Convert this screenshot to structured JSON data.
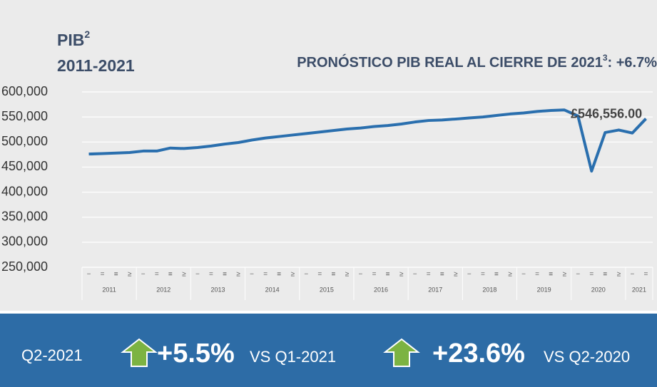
{
  "chart_data": {
    "type": "line",
    "title": "PIB",
    "title_sup": "2",
    "subtitle": "2011-2021",
    "annotation": {
      "text": "PRONÓSTICO PIB REAL AL CIERRE DE 2021",
      "sup": "3",
      "value": ": +6.7%"
    },
    "categories": [
      "−",
      "=",
      "≡",
      "≥",
      "−",
      "=",
      "≡",
      "≥",
      "−",
      "=",
      "≡",
      "≥",
      "−",
      "=",
      "≡",
      "≥",
      "−",
      "=",
      "≡",
      "≥",
      "−",
      "=",
      "≡",
      "≥",
      "−",
      "=",
      "≡",
      "≥",
      "−",
      "=",
      "≡",
      "≥",
      "−",
      "=",
      "≡",
      "≥",
      "−",
      "=",
      "≡",
      "≥",
      "−",
      "="
    ],
    "year_groups": [
      {
        "label": "2011",
        "count": 4
      },
      {
        "label": "2012",
        "count": 4
      },
      {
        "label": "2013",
        "count": 4
      },
      {
        "label": "2014",
        "count": 4
      },
      {
        "label": "2015",
        "count": 4
      },
      {
        "label": "2016",
        "count": 4
      },
      {
        "label": "2017",
        "count": 4
      },
      {
        "label": "2018",
        "count": 4
      },
      {
        "label": "2019",
        "count": 4
      },
      {
        "label": "2020",
        "count": 4
      },
      {
        "label": "2021",
        "count": 2
      }
    ],
    "series": [
      {
        "name": "PIB",
        "color": "#2a6fae",
        "values": [
          476000,
          477000,
          478000,
          479000,
          482000,
          482000,
          488000,
          487000,
          489000,
          492000,
          496000,
          499000,
          504000,
          508000,
          511000,
          514000,
          517000,
          520000,
          523000,
          526000,
          528000,
          531000,
          533000,
          536000,
          540000,
          543000,
          544000,
          546000,
          548000,
          550000,
          553000,
          556000,
          558000,
          561000,
          563000,
          564000,
          552000,
          442000,
          519000,
          524000,
          518000,
          546556
        ],
        "value_labels": [
          null,
          null,
          null,
          null,
          null,
          null,
          null,
          null,
          null,
          null,
          null,
          null,
          null,
          null,
          null,
          null,
          null,
          null,
          null,
          null,
          null,
          null,
          null,
          null,
          null,
          null,
          null,
          null,
          null,
          null,
          null,
          null,
          null,
          null,
          null,
          null,
          null,
          null,
          null,
          null,
          null,
          "£546,556.00"
        ]
      }
    ],
    "ylim": [
      250000,
      600000
    ],
    "yticks": [
      {
        "value": 250000,
        "label": "250,000"
      },
      {
        "value": 300000,
        "label": "300,000"
      },
      {
        "value": 350000,
        "label": "350,000"
      },
      {
        "value": 400000,
        "label": "400,000"
      },
      {
        "value": 450000,
        "label": "450,000"
      },
      {
        "value": 500000,
        "label": "500,000"
      },
      {
        "value": 550000,
        "label": "550,000"
      },
      {
        "value": 600000,
        "label": "600,000"
      }
    ],
    "grid": true
  },
  "footer": {
    "period": "Q2-2021",
    "change1": "+5.5%",
    "vs1": "VS Q1-2021",
    "change2": "+23.6%",
    "vs2": "VS Q2-2020"
  }
}
